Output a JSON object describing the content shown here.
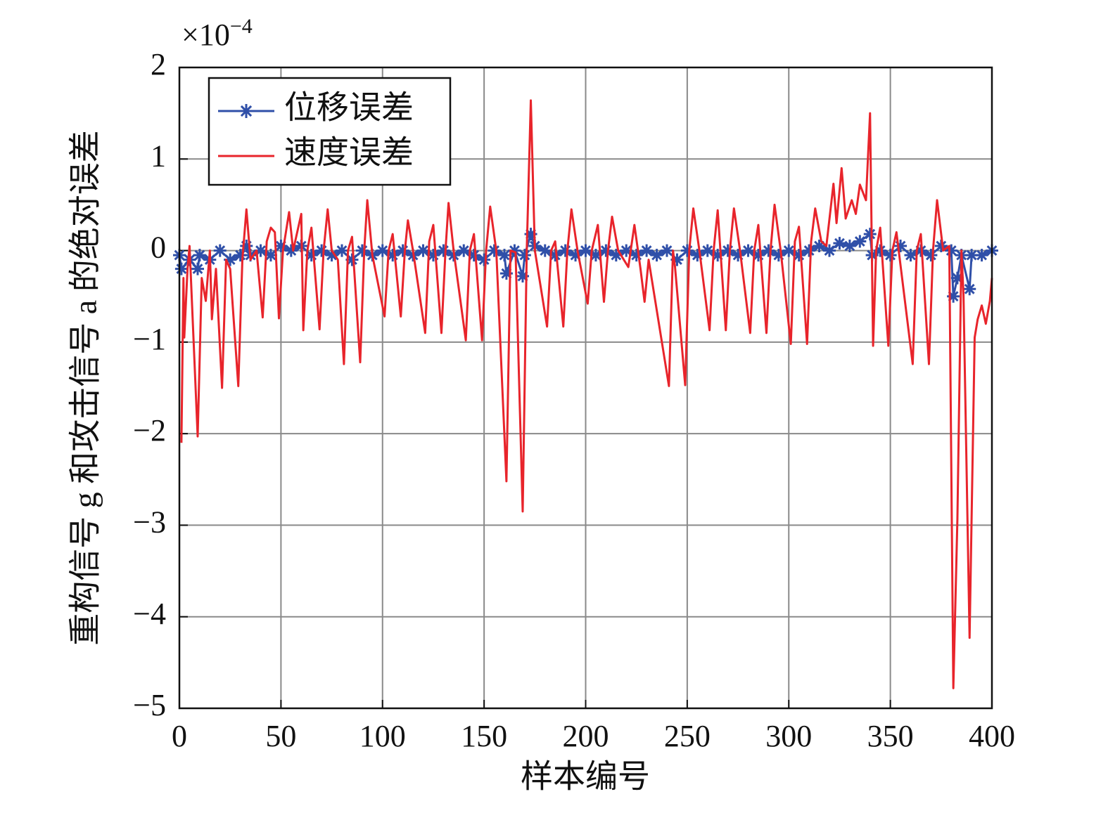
{
  "chart_data": {
    "type": "line",
    "x_label": "样本编号",
    "y_label": "重构信号 g 和攻击信号 a 的绝对误差",
    "y_scale_label": {
      "base": "×10",
      "exponent": "−4"
    },
    "xlim": [
      0,
      400
    ],
    "xticks": [
      0,
      50,
      100,
      150,
      200,
      250,
      300,
      350,
      400
    ],
    "ylim": [
      -5,
      2
    ],
    "yticks": [
      {
        "value": -5,
        "label": "−5"
      },
      {
        "value": -4,
        "label": "−4"
      },
      {
        "value": -3,
        "label": "−3"
      },
      {
        "value": -2,
        "label": "−2"
      },
      {
        "value": -1,
        "label": "−1"
      },
      0,
      1,
      2
    ],
    "grid": true,
    "legend": "upper left",
    "series": [
      {
        "name": "位移误差",
        "color": "#2f4fa8",
        "marker": "asterisk",
        "x": [
          0,
          1,
          5,
          9,
          10,
          15,
          20,
          25,
          30,
          33,
          35,
          40,
          45,
          50,
          55,
          60,
          65,
          70,
          75,
          80,
          85,
          90,
          95,
          100,
          105,
          110,
          115,
          120,
          125,
          130,
          135,
          140,
          145,
          150,
          155,
          160,
          161,
          165,
          169,
          170,
          173,
          175,
          180,
          185,
          190,
          195,
          200,
          205,
          210,
          215,
          220,
          225,
          230,
          235,
          240,
          245,
          250,
          255,
          260,
          265,
          270,
          275,
          280,
          285,
          290,
          295,
          300,
          305,
          310,
          315,
          320,
          325,
          330,
          335,
          340,
          341,
          345,
          350,
          355,
          360,
          365,
          370,
          375,
          380,
          381,
          383,
          385,
          389,
          390,
          395,
          400
        ],
        "values": [
          -0.05,
          -0.2,
          -0.1,
          -0.2,
          -0.05,
          -0.1,
          0.0,
          -0.1,
          -0.05,
          0.05,
          -0.05,
          0.0,
          -0.05,
          0.05,
          0.0,
          0.05,
          -0.05,
          0.0,
          -0.05,
          0.0,
          -0.1,
          0.0,
          -0.05,
          0.0,
          -0.05,
          0.0,
          -0.05,
          0.0,
          -0.05,
          0.0,
          -0.05,
          0.0,
          -0.05,
          -0.1,
          0.0,
          -0.05,
          -0.25,
          0.0,
          -0.28,
          -0.05,
          0.18,
          0.05,
          0.0,
          -0.05,
          0.0,
          -0.05,
          0.0,
          -0.05,
          0.0,
          -0.05,
          0.0,
          -0.05,
          0.0,
          -0.05,
          0.0,
          -0.1,
          0.0,
          -0.05,
          0.0,
          -0.05,
          0.0,
          -0.05,
          0.0,
          -0.05,
          0.0,
          -0.05,
          0.0,
          -0.05,
          0.0,
          0.05,
          0.0,
          0.08,
          0.05,
          0.1,
          0.18,
          -0.05,
          0.0,
          -0.05,
          0.05,
          -0.05,
          0.0,
          -0.05,
          0.05,
          0.0,
          -0.5,
          -0.3,
          -0.05,
          -0.42,
          -0.05,
          -0.05,
          0.0
        ]
      },
      {
        "name": "速度误差",
        "color": "#e8242b",
        "x": [
          1,
          2,
          2.4,
          4,
          5,
          9,
          11,
          13,
          15,
          16,
          18,
          21,
          23,
          25,
          29,
          31,
          33,
          35,
          38,
          41,
          43,
          45,
          47,
          49,
          51,
          54,
          56,
          60,
          61,
          63,
          65,
          69,
          71,
          73,
          75,
          78,
          81,
          83,
          85,
          89,
          91,
          92.5,
          95,
          101,
          103,
          105,
          109,
          111,
          112.5,
          115,
          121,
          123,
          125,
          129,
          131,
          132.5,
          135,
          141,
          143,
          145,
          149,
          151,
          153,
          156,
          161,
          163,
          165.5,
          169,
          171,
          173,
          175,
          181,
          183,
          185,
          189,
          191,
          193,
          196,
          201,
          203,
          206,
          209,
          211,
          213,
          216,
          221,
          224,
          227,
          229,
          231,
          241,
          243,
          244,
          249,
          251,
          253,
          256,
          261,
          263,
          265,
          269,
          271,
          273,
          276,
          281,
          283,
          285,
          289,
          291,
          293,
          296,
          301,
          303,
          305,
          309,
          311,
          313,
          316,
          318.5,
          322,
          323.5,
          326,
          328,
          331,
          333,
          335,
          338,
          340,
          341.5,
          343,
          345,
          349,
          351,
          353,
          361,
          363,
          365,
          369,
          371,
          373,
          376,
          379,
          381,
          383,
          385,
          386,
          389,
          391.5,
          393,
          395,
          397,
          399,
          400
        ],
        "values": [
          -2.1,
          -0.3,
          -0.95,
          -0.2,
          0.05,
          -2.03,
          -0.3,
          -0.55,
          0.0,
          -0.75,
          -0.2,
          -1.5,
          -0.1,
          -0.2,
          -1.48,
          -0.1,
          0.45,
          -0.1,
          0.0,
          -0.73,
          0.1,
          0.25,
          0.2,
          -0.74,
          0.0,
          0.42,
          0.0,
          0.4,
          -0.87,
          0.0,
          0.25,
          -0.86,
          0.0,
          0.45,
          0.0,
          -0.1,
          -1.24,
          0.0,
          0.15,
          -1.22,
          0.0,
          0.55,
          -0.05,
          -0.72,
          0.0,
          0.18,
          -0.72,
          0.0,
          0.33,
          0.0,
          -0.9,
          0.1,
          0.28,
          -0.9,
          0.0,
          0.52,
          0.0,
          -0.98,
          0.0,
          0.18,
          -0.98,
          0.0,
          0.48,
          0.0,
          -2.52,
          0.0,
          -0.02,
          -2.85,
          0.0,
          1.64,
          0.0,
          -0.83,
          0.0,
          0.1,
          -0.83,
          0.0,
          0.45,
          0.0,
          -0.58,
          0.0,
          0.28,
          -0.56,
          0.0,
          0.37,
          0.0,
          -0.18,
          0.28,
          -0.2,
          -0.56,
          -0.1,
          -1.48,
          0.0,
          -0.18,
          -1.47,
          0.0,
          0.46,
          0.0,
          -0.87,
          0.0,
          0.44,
          -0.87,
          0.0,
          0.46,
          0.0,
          -0.9,
          0.0,
          0.28,
          -0.9,
          0.0,
          0.5,
          0.0,
          -1.02,
          0.1,
          0.26,
          -1.02,
          0.1,
          0.46,
          0.1,
          0.05,
          0.73,
          0.3,
          0.9,
          0.35,
          0.55,
          0.4,
          0.72,
          0.55,
          1.5,
          -1.04,
          0.0,
          0.25,
          -1.04,
          0.0,
          0.2,
          -1.24,
          0.0,
          0.18,
          -1.24,
          0.0,
          0.55,
          0.0,
          0.05,
          -4.78,
          -2.94,
          0.0,
          -0.48,
          -4.23,
          -0.95,
          -0.75,
          -0.6,
          -0.8,
          -0.55,
          -0.3
        ]
      }
    ]
  }
}
